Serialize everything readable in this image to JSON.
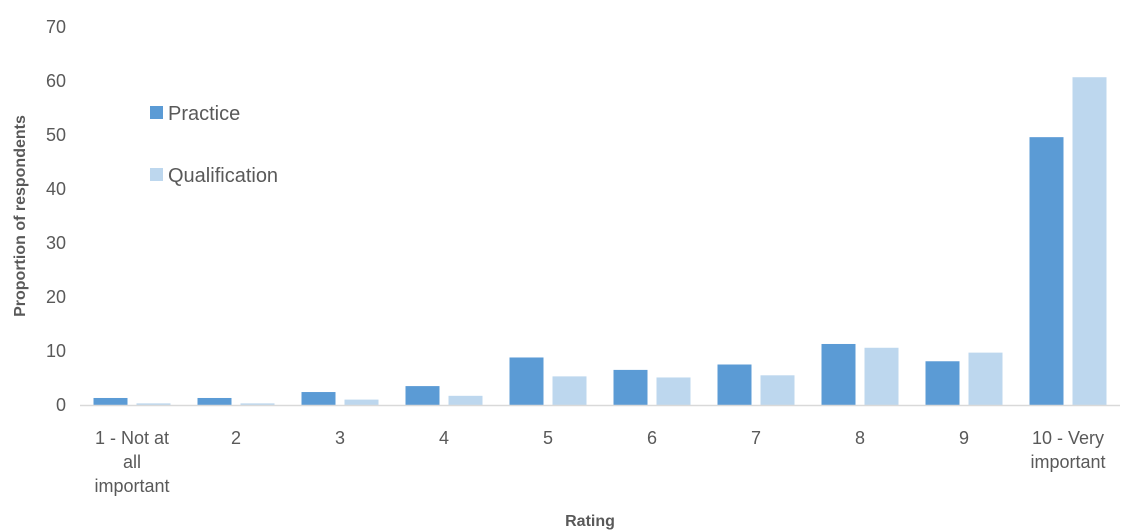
{
  "chart_data": {
    "type": "bar",
    "xlabel": "Rating",
    "ylabel": "Proportion of respondents",
    "ylim": [
      0,
      70
    ],
    "yticks": [
      0,
      10,
      20,
      30,
      40,
      50,
      60,
      70
    ],
    "categories": [
      [
        "1 - Not at",
        "all",
        "important"
      ],
      [
        "2"
      ],
      [
        "3"
      ],
      [
        "4"
      ],
      [
        "5"
      ],
      [
        "6"
      ],
      [
        "7"
      ],
      [
        "8"
      ],
      [
        "9"
      ],
      [
        "10 - Very",
        "important"
      ]
    ],
    "series": [
      {
        "name": "Practice",
        "color": "#5b9bd5",
        "values": [
          1.3,
          1.3,
          2.4,
          3.5,
          8.8,
          6.5,
          7.5,
          11.3,
          8.1,
          49.6
        ]
      },
      {
        "name": "Qualification",
        "color": "#bdd7ee",
        "values": [
          0.3,
          0.3,
          1.0,
          1.7,
          5.3,
          5.1,
          5.5,
          10.6,
          9.7,
          60.7
        ]
      }
    ],
    "legend_position": "upper-left inside plot",
    "grid": false
  }
}
